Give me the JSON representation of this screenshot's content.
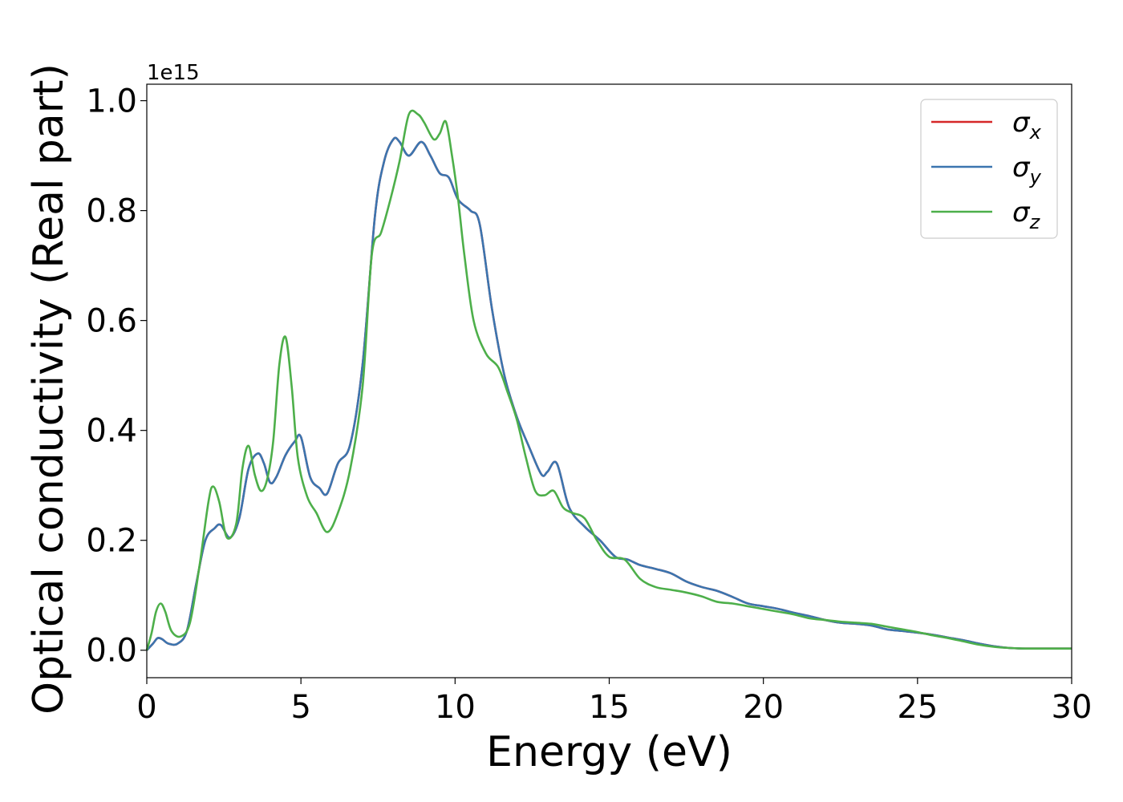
{
  "chart_data": {
    "type": "line",
    "xlabel": "Energy (eV)",
    "ylabel": "Optical conductivity (Real part)",
    "y_offset_text": "1e15",
    "xlim": [
      0,
      30
    ],
    "ylim": [
      -0.05,
      1.03
    ],
    "y_scale_factor": 1000000000000000.0,
    "x_ticks": [
      "0",
      "5",
      "10",
      "15",
      "20",
      "25",
      "30"
    ],
    "y_ticks": [
      "0.0",
      "0.2",
      "0.4",
      "0.6",
      "0.8",
      "1.0"
    ],
    "grid": false,
    "legend_position": "top-right",
    "series": [
      {
        "name": "σx",
        "symbol": "σ",
        "subscript": "x",
        "color": "#d62728",
        "x": [
          0,
          0.2,
          0.35,
          0.5,
          0.7,
          1.0,
          1.3,
          1.6,
          1.9,
          2.2,
          2.4,
          2.7,
          3.0,
          3.3,
          3.6,
          3.8,
          4.0,
          4.2,
          4.5,
          4.8,
          5.0,
          5.3,
          5.6,
          5.85,
          6.2,
          6.6,
          7.0,
          7.4,
          7.7,
          8.0,
          8.2,
          8.5,
          8.9,
          9.2,
          9.5,
          9.8,
          10.1,
          10.5,
          10.8,
          11.2,
          11.6,
          12.0,
          12.4,
          12.8,
          13.0,
          13.3,
          13.7,
          14.2,
          14.7,
          15.2,
          15.6,
          16.0,
          16.5,
          17.0,
          17.5,
          18.0,
          18.5,
          19.0,
          19.5,
          20.0,
          20.5,
          21.0,
          21.5,
          22.0,
          22.5,
          23.0,
          23.5,
          24.0,
          24.5,
          25.0,
          25.5,
          26.0,
          26.5,
          27.0,
          27.5,
          28.0,
          28.5,
          29.0,
          29.5,
          30.0
        ],
        "y": [
          0.0,
          0.012,
          0.022,
          0.02,
          0.012,
          0.012,
          0.035,
          0.12,
          0.2,
          0.222,
          0.228,
          0.205,
          0.24,
          0.33,
          0.358,
          0.34,
          0.305,
          0.315,
          0.355,
          0.38,
          0.388,
          0.315,
          0.295,
          0.285,
          0.34,
          0.375,
          0.52,
          0.79,
          0.89,
          0.93,
          0.925,
          0.9,
          0.925,
          0.9,
          0.868,
          0.86,
          0.82,
          0.8,
          0.775,
          0.62,
          0.5,
          0.425,
          0.37,
          0.32,
          0.325,
          0.34,
          0.26,
          0.225,
          0.2,
          0.17,
          0.165,
          0.155,
          0.148,
          0.14,
          0.125,
          0.115,
          0.108,
          0.097,
          0.085,
          0.08,
          0.075,
          0.068,
          0.062,
          0.055,
          0.05,
          0.048,
          0.045,
          0.038,
          0.035,
          0.032,
          0.028,
          0.023,
          0.018,
          0.012,
          0.007,
          0.004,
          0.003,
          0.003,
          0.003,
          0.003
        ]
      },
      {
        "name": "σy",
        "symbol": "σ",
        "subscript": "y",
        "color": "#3b75af",
        "x": [
          0,
          0.2,
          0.35,
          0.5,
          0.7,
          1.0,
          1.3,
          1.6,
          1.9,
          2.2,
          2.4,
          2.7,
          3.0,
          3.3,
          3.6,
          3.8,
          4.0,
          4.2,
          4.5,
          4.8,
          5.0,
          5.3,
          5.6,
          5.85,
          6.2,
          6.6,
          7.0,
          7.4,
          7.7,
          8.0,
          8.2,
          8.5,
          8.9,
          9.2,
          9.5,
          9.8,
          10.1,
          10.5,
          10.8,
          11.2,
          11.6,
          12.0,
          12.4,
          12.8,
          13.0,
          13.3,
          13.7,
          14.2,
          14.7,
          15.2,
          15.6,
          16.0,
          16.5,
          17.0,
          17.5,
          18.0,
          18.5,
          19.0,
          19.5,
          20.0,
          20.5,
          21.0,
          21.5,
          22.0,
          22.5,
          23.0,
          23.5,
          24.0,
          24.5,
          25.0,
          25.5,
          26.0,
          26.5,
          27.0,
          27.5,
          28.0,
          28.5,
          29.0,
          29.5,
          30.0
        ],
        "y": [
          0.0,
          0.012,
          0.022,
          0.02,
          0.012,
          0.012,
          0.035,
          0.12,
          0.2,
          0.222,
          0.228,
          0.205,
          0.24,
          0.33,
          0.358,
          0.34,
          0.305,
          0.315,
          0.355,
          0.38,
          0.388,
          0.315,
          0.295,
          0.285,
          0.34,
          0.375,
          0.52,
          0.79,
          0.89,
          0.93,
          0.925,
          0.9,
          0.925,
          0.9,
          0.868,
          0.86,
          0.82,
          0.8,
          0.775,
          0.62,
          0.5,
          0.425,
          0.37,
          0.32,
          0.325,
          0.34,
          0.26,
          0.225,
          0.2,
          0.17,
          0.165,
          0.155,
          0.148,
          0.14,
          0.125,
          0.115,
          0.108,
          0.097,
          0.085,
          0.08,
          0.075,
          0.068,
          0.062,
          0.055,
          0.05,
          0.048,
          0.045,
          0.038,
          0.035,
          0.032,
          0.028,
          0.023,
          0.018,
          0.012,
          0.007,
          0.004,
          0.003,
          0.003,
          0.003,
          0.003
        ]
      },
      {
        "name": "σz",
        "symbol": "σ",
        "subscript": "z",
        "color": "#4daf4a",
        "x": [
          0,
          0.15,
          0.3,
          0.45,
          0.6,
          0.8,
          1.1,
          1.4,
          1.7,
          2.0,
          2.15,
          2.35,
          2.6,
          2.9,
          3.1,
          3.3,
          3.5,
          3.7,
          3.9,
          4.1,
          4.3,
          4.5,
          4.7,
          4.9,
          5.2,
          5.5,
          5.85,
          6.2,
          6.6,
          7.0,
          7.3,
          7.6,
          7.9,
          8.2,
          8.5,
          8.8,
          9.0,
          9.3,
          9.5,
          9.7,
          9.9,
          10.1,
          10.3,
          10.6,
          11.0,
          11.4,
          11.7,
          12.0,
          12.3,
          12.6,
          12.9,
          13.2,
          13.5,
          13.8,
          14.2,
          14.6,
          15.0,
          15.5,
          16.0,
          16.5,
          17.0,
          17.5,
          18.0,
          18.5,
          19.0,
          19.5,
          20.0,
          20.5,
          21.0,
          21.5,
          22.0,
          22.5,
          23.0,
          23.5,
          24.0,
          24.5,
          25.0,
          25.5,
          26.0,
          26.5,
          27.0,
          27.5,
          28.0,
          28.5,
          29.0,
          29.5,
          30.0
        ],
        "y": [
          0.0,
          0.03,
          0.07,
          0.085,
          0.07,
          0.035,
          0.025,
          0.05,
          0.15,
          0.27,
          0.298,
          0.27,
          0.205,
          0.23,
          0.33,
          0.372,
          0.32,
          0.29,
          0.31,
          0.38,
          0.52,
          0.57,
          0.48,
          0.35,
          0.28,
          0.25,
          0.215,
          0.25,
          0.33,
          0.48,
          0.72,
          0.76,
          0.82,
          0.89,
          0.975,
          0.975,
          0.96,
          0.93,
          0.94,
          0.962,
          0.9,
          0.82,
          0.72,
          0.6,
          0.54,
          0.515,
          0.47,
          0.42,
          0.35,
          0.29,
          0.282,
          0.29,
          0.26,
          0.25,
          0.24,
          0.2,
          0.17,
          0.165,
          0.13,
          0.115,
          0.11,
          0.105,
          0.098,
          0.088,
          0.085,
          0.08,
          0.075,
          0.07,
          0.065,
          0.058,
          0.055,
          0.052,
          0.05,
          0.048,
          0.043,
          0.038,
          0.033,
          0.027,
          0.022,
          0.016,
          0.01,
          0.006,
          0.004,
          0.003,
          0.003,
          0.003,
          0.003
        ]
      }
    ]
  }
}
